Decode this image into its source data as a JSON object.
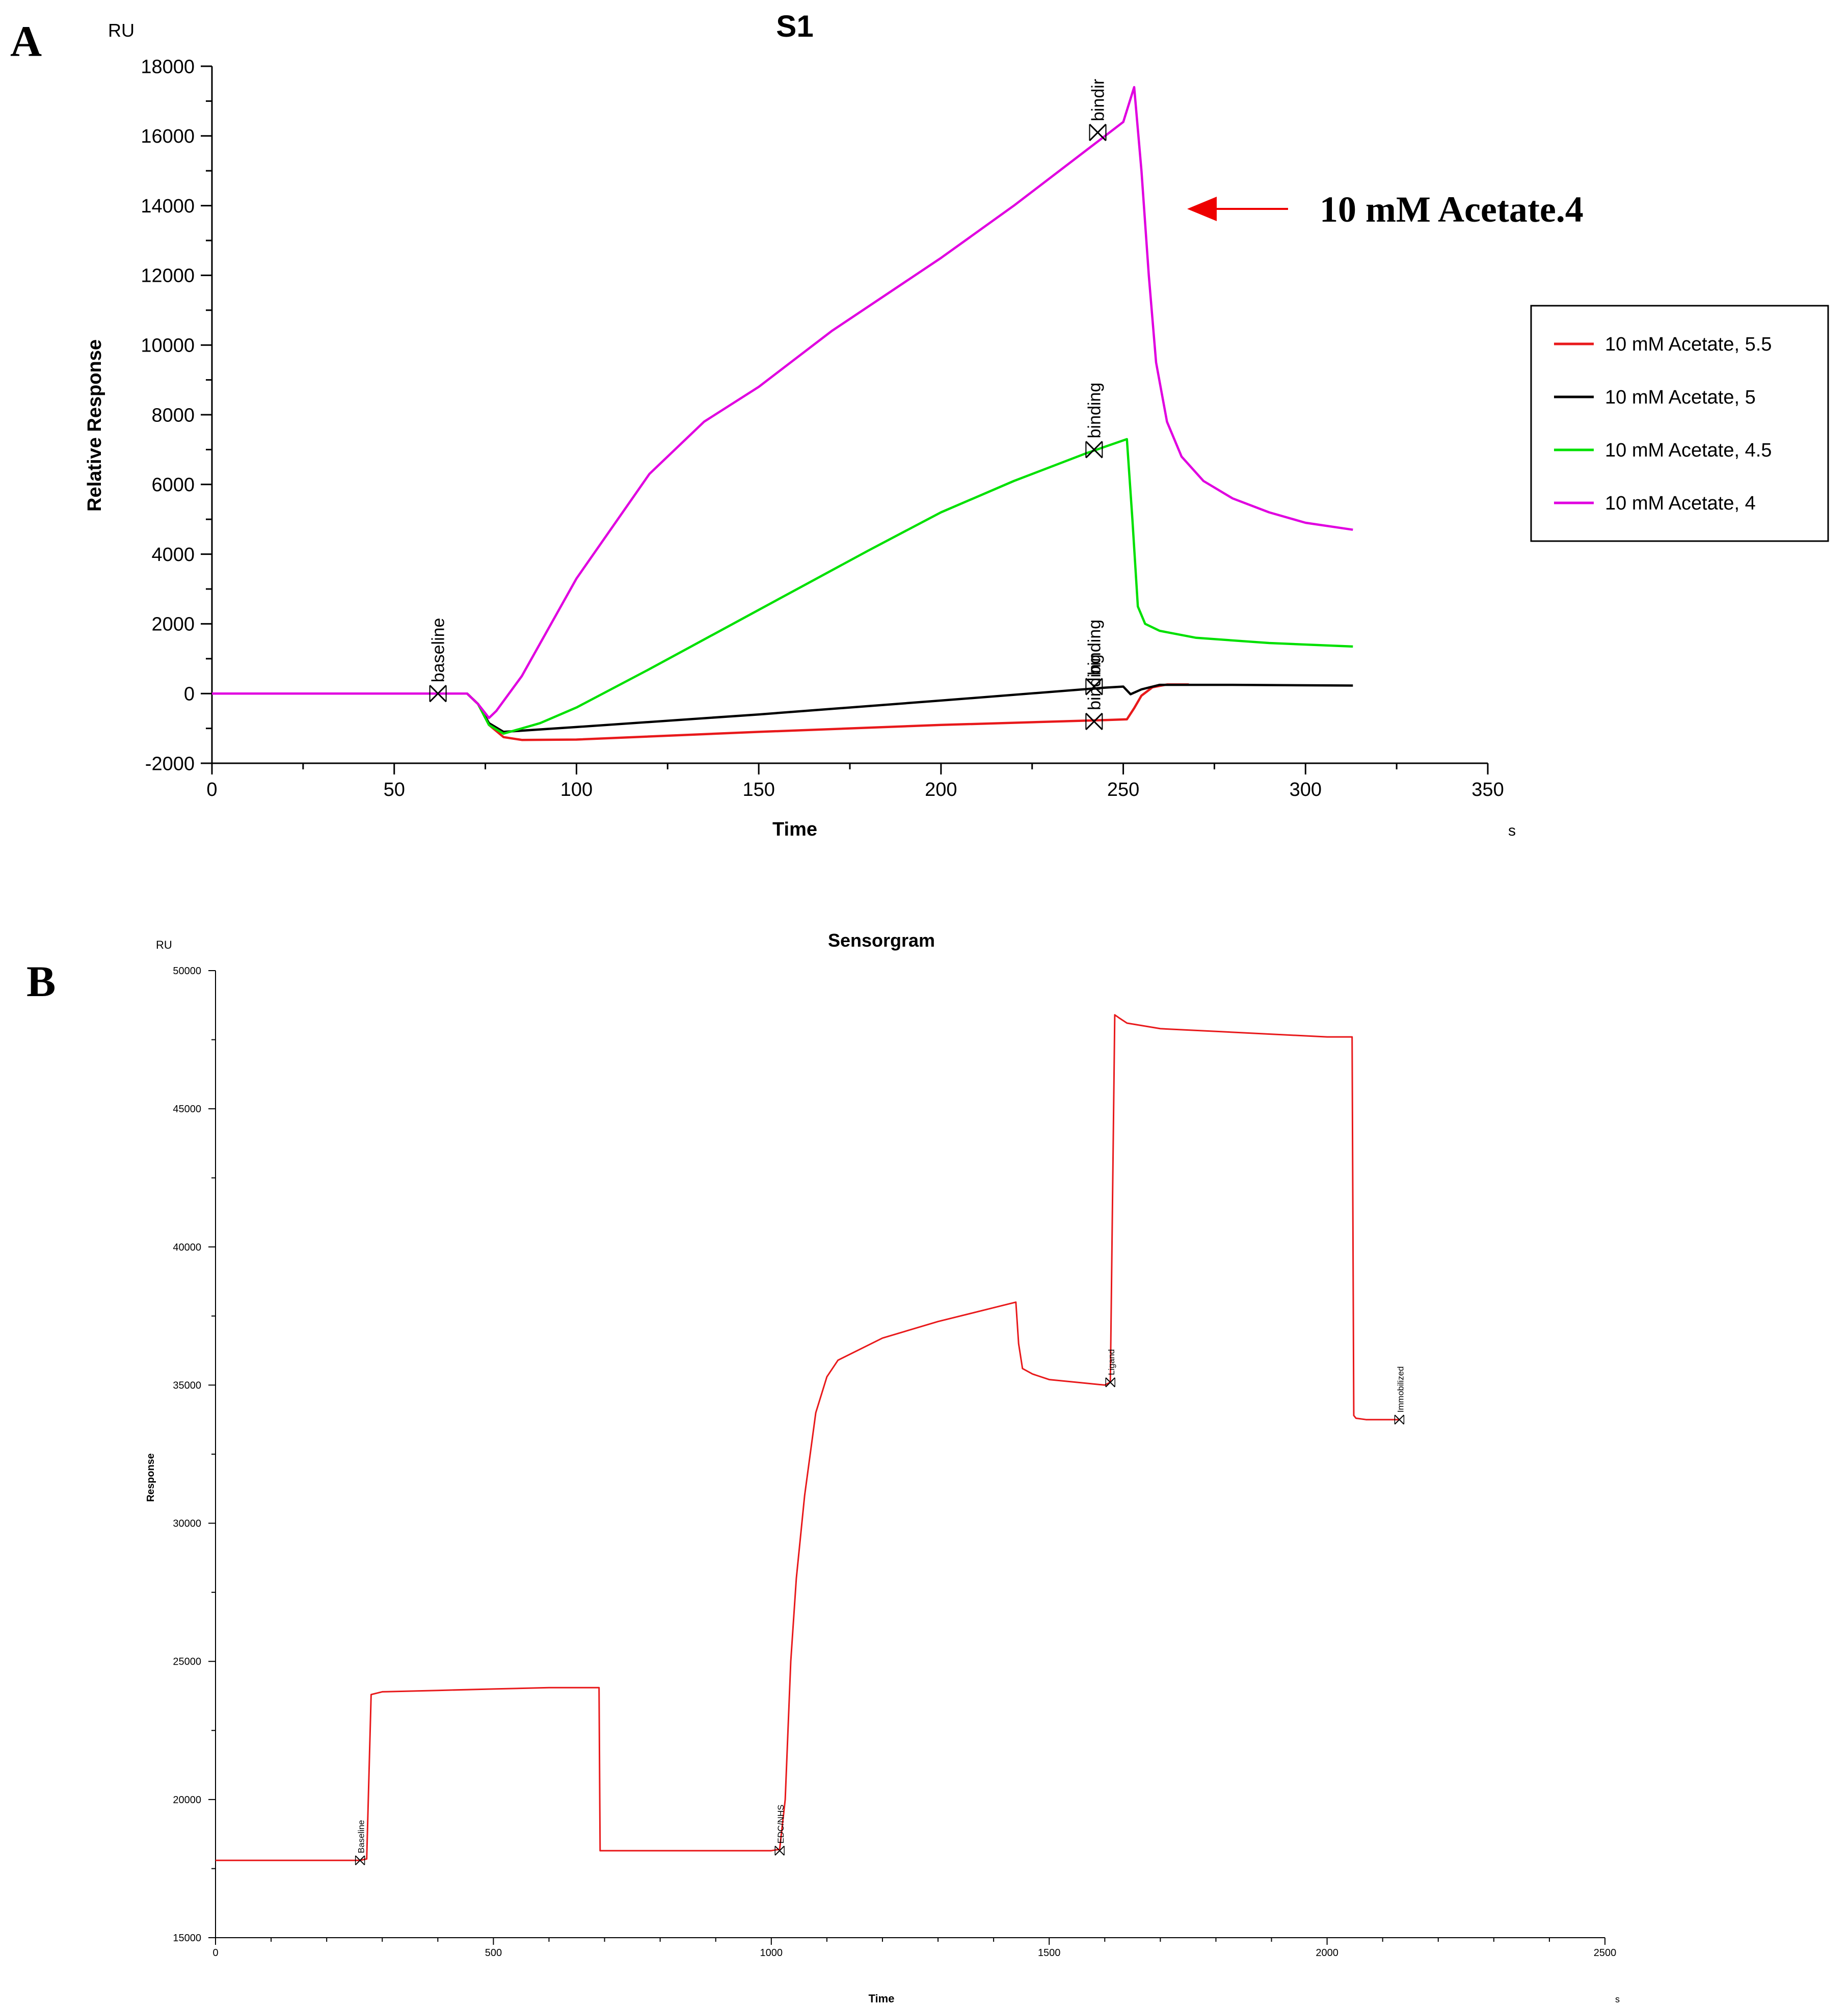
{
  "chart_data": [
    {
      "panel_label": "A",
      "type": "line",
      "title": "S1",
      "xlabel": "Time",
      "x_unit": "s",
      "ylabel": "Relative Response",
      "y_unit": "RU",
      "xlim": [
        0,
        350
      ],
      "ylim": [
        -2000,
        18000
      ],
      "x_ticks": [
        0,
        50,
        100,
        150,
        200,
        250,
        300,
        350
      ],
      "y_ticks": [
        -2000,
        0,
        2000,
        4000,
        6000,
        8000,
        10000,
        12000,
        14000,
        16000,
        18000
      ],
      "grid": false,
      "legend_position": "right",
      "annotation": {
        "text": "10 mM Acetate.4",
        "arrow_color": "#ee0000"
      },
      "series": [
        {
          "name": "10 mM Acetate, 5.5",
          "color": "#e8191b",
          "x": [
            0,
            60,
            70,
            73,
            76,
            80,
            85,
            100,
            150,
            200,
            245,
            251,
            253,
            255,
            258,
            262,
            268
          ],
          "y": [
            0,
            0,
            0,
            -300,
            -900,
            -1250,
            -1330,
            -1320,
            -1100,
            -900,
            -760,
            -740,
            -420,
            -60,
            180,
            260,
            260
          ]
        },
        {
          "name": "10 mM Acetate, 5",
          "color": "#000000",
          "x": [
            0,
            60,
            70,
            73,
            76,
            80,
            100,
            150,
            200,
            245,
            250,
            252,
            255,
            260,
            280,
            313
          ],
          "y": [
            0,
            0,
            0,
            -300,
            -850,
            -1100,
            -960,
            -600,
            -200,
            170,
            200,
            -20,
            120,
            250,
            250,
            230
          ]
        },
        {
          "name": "10 mM Acetate, 4.5",
          "color": "#00e000",
          "x": [
            0,
            60,
            70,
            73,
            76,
            80,
            90,
            100,
            120,
            150,
            180,
            200,
            220,
            240,
            251,
            252.5,
            254,
            256,
            260,
            270,
            290,
            313
          ],
          "y": [
            0,
            0,
            0,
            -300,
            -900,
            -1150,
            -850,
            -400,
            700,
            2400,
            4100,
            5200,
            6100,
            6900,
            7300,
            5000,
            2500,
            2000,
            1800,
            1600,
            1450,
            1350
          ]
        },
        {
          "name": "10 mM Acetate, 4",
          "color": "#e000e0",
          "x": [
            0,
            60,
            70,
            73,
            76,
            78,
            85,
            100,
            120,
            135,
            150,
            170,
            200,
            220,
            240,
            250,
            253,
            255,
            257,
            259,
            262,
            266,
            272,
            280,
            290,
            300,
            313
          ],
          "y": [
            0,
            0,
            0,
            -300,
            -700,
            -500,
            500,
            3300,
            6300,
            7800,
            8800,
            10400,
            12500,
            14000,
            15600,
            16400,
            17400,
            15000,
            12000,
            9500,
            7800,
            6800,
            6100,
            5600,
            5200,
            4900,
            4700
          ]
        }
      ],
      "markers": [
        {
          "label": "baseline",
          "x": 62,
          "y": 0
        },
        {
          "label": "bindir",
          "x": 243,
          "y": 16100
        },
        {
          "label": "binding",
          "x": 242,
          "y": 7000
        },
        {
          "label": "binding",
          "x": 242,
          "y": 200
        },
        {
          "label": "binding",
          "x": 242,
          "y": -800
        }
      ]
    },
    {
      "panel_label": "B",
      "type": "line",
      "title": "Sensorgram",
      "xlabel": "Time",
      "x_unit": "s",
      "ylabel": "Response",
      "y_unit": "RU",
      "xlim": [
        0,
        2500
      ],
      "ylim": [
        15000,
        50000
      ],
      "x_ticks": [
        0,
        500,
        1000,
        1500,
        2000,
        2500
      ],
      "y_ticks": [
        15000,
        20000,
        25000,
        30000,
        35000,
        40000,
        45000,
        50000
      ],
      "grid": false,
      "series": [
        {
          "name": "Sensorgram",
          "color": "#e8191b",
          "x": [
            0,
            260,
            272,
            280,
            300,
            400,
            500,
            600,
            690,
            692,
            700,
            800,
            900,
            1000,
            1015,
            1025,
            1035,
            1045,
            1060,
            1080,
            1100,
            1120,
            1200,
            1300,
            1400,
            1440,
            1445,
            1452,
            1470,
            1500,
            1550,
            1600,
            1610,
            1618,
            1625,
            1640,
            1700,
            1800,
            1900,
            2000,
            2045,
            2048,
            2052,
            2070,
            2100,
            2130
          ],
          "y": [
            17800,
            17800,
            17850,
            23800,
            23900,
            23950,
            24000,
            24050,
            24050,
            18150,
            18150,
            18150,
            18150,
            18150,
            18200,
            20000,
            25000,
            28000,
            31000,
            34000,
            35300,
            35900,
            36700,
            37300,
            37800,
            38000,
            36500,
            35600,
            35400,
            35200,
            35100,
            35000,
            35100,
            48400,
            48300,
            48100,
            47900,
            47800,
            47700,
            47600,
            47600,
            33900,
            33800,
            33750,
            33750,
            33750
          ]
        }
      ],
      "markers": [
        {
          "label": "Baseline",
          "x": 260,
          "y": 17800
        },
        {
          "label": "EDC/NHS",
          "x": 1015,
          "y": 18150
        },
        {
          "label": "Ligand",
          "x": 1610,
          "y": 35100
        },
        {
          "label": "Immobilized",
          "x": 2130,
          "y": 33750
        }
      ]
    }
  ]
}
